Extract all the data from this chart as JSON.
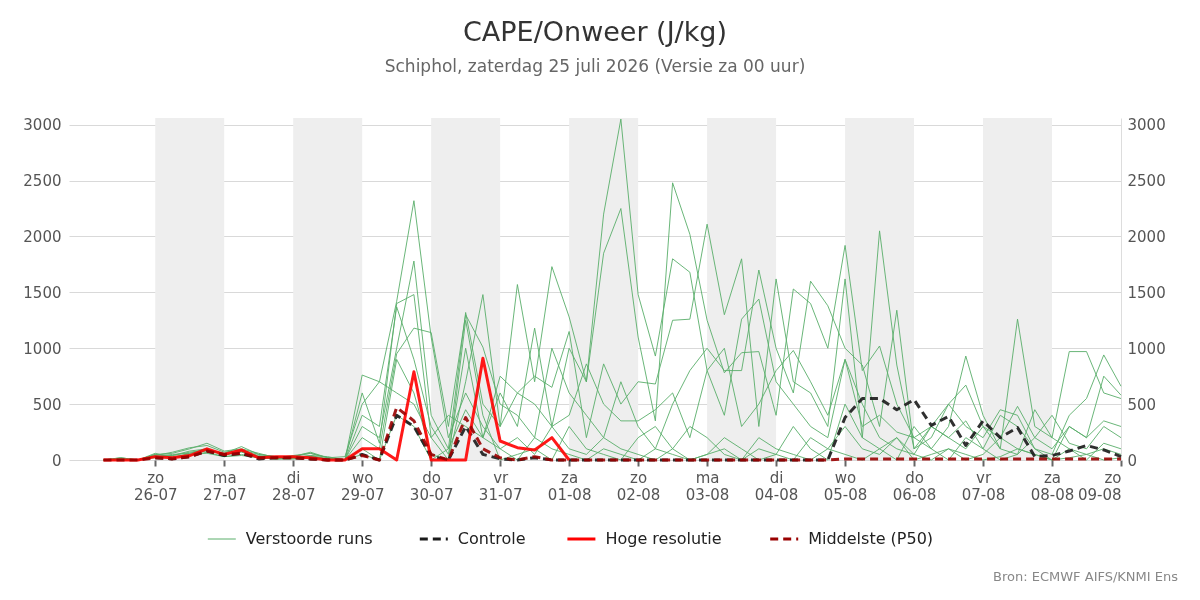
{
  "chart_data": {
    "type": "line",
    "title": "CAPE/Onweer (J/kg)",
    "subtitle": "Schiphol, zaterdag 25 juli 2026 (Versie za 00 uur)",
    "annotations": [
      "Bron: ECMWF AIFS/KNMI Ens"
    ],
    "x": [
      "2026-07-25T06:00",
      "2026-07-25T12:00",
      "2026-07-25T18:00",
      "2026-07-26T00:00",
      "2026-07-26T06:00",
      "2026-07-26T12:00",
      "2026-07-26T18:00",
      "2026-07-27T00:00",
      "2026-07-27T06:00",
      "2026-07-27T12:00",
      "2026-07-27T18:00",
      "2026-07-28T00:00",
      "2026-07-28T06:00",
      "2026-07-28T12:00",
      "2026-07-28T18:00",
      "2026-07-29T00:00",
      "2026-07-29T06:00",
      "2026-07-29T12:00",
      "2026-07-29T18:00",
      "2026-07-30T00:00",
      "2026-07-30T06:00",
      "2026-07-30T12:00",
      "2026-07-30T18:00",
      "2026-07-31T00:00",
      "2026-07-31T06:00",
      "2026-07-31T12:00",
      "2026-07-31T18:00",
      "2026-08-01T00:00",
      "2026-08-01T06:00",
      "2026-08-01T12:00",
      "2026-08-01T18:00",
      "2026-08-02T00:00",
      "2026-08-02T06:00",
      "2026-08-02T12:00",
      "2026-08-02T18:00",
      "2026-08-03T00:00",
      "2026-08-03T06:00",
      "2026-08-03T12:00",
      "2026-08-03T18:00",
      "2026-08-04T00:00",
      "2026-08-04T06:00",
      "2026-08-04T12:00",
      "2026-08-04T18:00",
      "2026-08-05T00:00",
      "2026-08-05T06:00",
      "2026-08-05T12:00",
      "2026-08-05T18:00",
      "2026-08-06T00:00",
      "2026-08-06T06:00",
      "2026-08-06T12:00",
      "2026-08-06T18:00",
      "2026-08-07T00:00",
      "2026-08-07T06:00",
      "2026-08-07T12:00",
      "2026-08-07T18:00",
      "2026-08-08T00:00",
      "2026-08-08T06:00",
      "2026-08-08T12:00",
      "2026-08-08T18:00",
      "2026-08-09T00:00"
    ],
    "xlim": [
      "2026-07-24T18:00",
      "2026-08-09T00:00"
    ],
    "xticks": [
      {
        "value": "2026-07-26",
        "label": "zo\n26-07"
      },
      {
        "value": "2026-07-27",
        "label": "ma\n27-07"
      },
      {
        "value": "2026-07-28",
        "label": "di\n28-07"
      },
      {
        "value": "2026-07-29",
        "label": "wo\n29-07"
      },
      {
        "value": "2026-07-30",
        "label": "do\n30-07"
      },
      {
        "value": "2026-07-31",
        "label": "vr\n31-07"
      },
      {
        "value": "2026-08-01",
        "label": "za\n01-08"
      },
      {
        "value": "2026-08-02",
        "label": "zo\n02-08"
      },
      {
        "value": "2026-08-03",
        "label": "ma\n03-08"
      },
      {
        "value": "2026-08-04",
        "label": "di\n04-08"
      },
      {
        "value": "2026-08-05",
        "label": "wo\n05-08"
      },
      {
        "value": "2026-08-06",
        "label": "do\n06-08"
      },
      {
        "value": "2026-08-07",
        "label": "vr\n07-08"
      },
      {
        "value": "2026-08-08",
        "label": "za\n08-08"
      },
      {
        "value": "2026-08-09",
        "label": "zo\n09-08"
      }
    ],
    "ylim": [
      0,
      3060
    ],
    "yticks": [
      0,
      500,
      1000,
      1500,
      2000,
      2500,
      3000
    ],
    "y2lim": [
      0,
      3060
    ],
    "y2ticks": [
      0,
      500,
      1000,
      1500,
      2000,
      2500,
      3000
    ],
    "grid": "y",
    "legend": "bottom",
    "bands": [
      {
        "axis": "x",
        "from": "2026-07-26",
        "to": "2026-07-27",
        "color": "#eeeeee"
      },
      {
        "axis": "x",
        "from": "2026-07-28",
        "to": "2026-07-29",
        "color": "#eeeeee"
      },
      {
        "axis": "x",
        "from": "2026-07-30",
        "to": "2026-07-31",
        "color": "#eeeeee"
      },
      {
        "axis": "x",
        "from": "2026-08-01",
        "to": "2026-08-02",
        "color": "#eeeeee"
      },
      {
        "axis": "x",
        "from": "2026-08-03",
        "to": "2026-08-04",
        "color": "#eeeeee"
      },
      {
        "axis": "x",
        "from": "2026-08-05",
        "to": "2026-08-06",
        "color": "#eeeeee"
      },
      {
        "axis": "x",
        "from": "2026-08-07",
        "to": "2026-08-08",
        "color": "#eeeeee"
      }
    ],
    "series": [
      {
        "name": "Verstoorde runs",
        "color": "#5aae6a",
        "line_style": "solid",
        "values": [
          0,
          10,
          0,
          50,
          60,
          100,
          150,
          80,
          100,
          60,
          20,
          40,
          60,
          20,
          30,
          500,
          700,
          1420,
          2320,
          1100,
          200,
          600,
          300,
          100,
          200,
          50,
          300,
          100,
          50,
          200,
          100,
          50,
          0,
          100,
          300,
          200,
          50,
          0,
          100,
          50,
          0,
          200,
          100,
          50,
          0,
          100,
          200,
          50,
          0,
          100,
          50,
          0,
          30,
          100,
          50,
          0,
          20,
          50,
          100,
          50
        ]
      },
      {
        "color": "#5aae6a",
        "line_style": "solid",
        "values": [
          0,
          20,
          0,
          30,
          40,
          70,
          90,
          60,
          120,
          50,
          30,
          20,
          40,
          30,
          0,
          400,
          300,
          1370,
          900,
          300,
          50,
          1000,
          200,
          600,
          300,
          1180,
          300,
          1000,
          700,
          2200,
          3050,
          1480,
          930,
          1800,
          1680,
          800,
          400,
          1260,
          1440,
          700,
          500,
          300,
          200,
          900,
          500,
          200,
          100,
          50,
          300,
          200,
          100,
          300,
          100,
          50,
          200,
          400,
          150,
          100,
          300,
          200
        ]
      },
      {
        "color": "#5aae6a",
        "line_style": "solid",
        "values": [
          0,
          0,
          0,
          60,
          20,
          60,
          100,
          40,
          80,
          30,
          10,
          20,
          30,
          10,
          0,
          300,
          200,
          1000,
          1780,
          400,
          100,
          1320,
          500,
          300,
          1570,
          700,
          1730,
          1280,
          700,
          1850,
          2250,
          1100,
          350,
          2480,
          2020,
          1250,
          780,
          960,
          970,
          400,
          1530,
          1400,
          1000,
          1920,
          800,
          1020,
          500,
          200,
          100,
          300,
          930,
          400,
          100,
          1260,
          300,
          200,
          970,
          970,
          600,
          550
        ]
      },
      {
        "color": "#5aae6a",
        "line_style": "solid",
        "values": [
          0,
          10,
          0,
          40,
          70,
          110,
          130,
          70,
          90,
          50,
          30,
          30,
          70,
          20,
          0,
          600,
          150,
          1400,
          1480,
          200,
          0,
          700,
          1480,
          300,
          600,
          750,
          650,
          1150,
          200,
          860,
          500,
          700,
          680,
          1250,
          1260,
          2110,
          1300,
          1800,
          300,
          1620,
          700,
          600,
          300,
          1620,
          200,
          2050,
          850,
          100,
          200,
          500,
          300,
          200,
          450,
          400,
          100,
          0,
          300,
          200,
          750,
          580
        ]
      },
      {
        "color": "#5aae6a",
        "line_style": "solid",
        "values": [
          null,
          null,
          0,
          20,
          30,
          50,
          60,
          30,
          50,
          20,
          10,
          10,
          20,
          10,
          0,
          200,
          100,
          950,
          1180,
          1140,
          300,
          1300,
          1010,
          500,
          400,
          200,
          1000,
          600,
          400,
          200,
          700,
          300,
          100,
          500,
          800,
          1000,
          800,
          800,
          1700,
          1000,
          600,
          1600,
          1380,
          1000,
          850,
          300,
          1340,
          100,
          300,
          200,
          350,
          100,
          400,
          300,
          100,
          50,
          400,
          550,
          940,
          660
        ]
      },
      {
        "color": "#5aae6a",
        "line_style": "solid",
        "values": [
          0,
          20,
          0,
          50,
          40,
          80,
          100,
          50,
          80,
          40,
          20,
          30,
          60,
          20,
          0,
          760,
          700,
          600,
          500,
          200,
          400,
          300,
          200,
          750,
          600,
          500,
          300,
          400,
          860,
          500,
          350,
          350,
          450,
          600,
          200,
          800,
          1000,
          300,
          500,
          800,
          980,
          700,
          400,
          900,
          300,
          400,
          250,
          200,
          300,
          500,
          670,
          300,
          200,
          480,
          200,
          100,
          300,
          200,
          350,
          300
        ]
      },
      {
        "color": "#5aae6a",
        "line_style": "solid",
        "values": [
          0,
          10,
          0,
          30,
          50,
          60,
          80,
          50,
          70,
          30,
          10,
          20,
          40,
          10,
          0,
          100,
          0,
          400,
          300,
          0,
          100,
          450,
          200,
          100,
          0,
          200,
          100,
          50,
          0,
          100,
          50,
          0,
          100,
          50,
          0,
          50,
          100,
          0,
          200,
          100,
          50,
          0,
          100,
          300,
          100,
          50,
          200,
          0,
          50,
          100,
          0,
          50,
          200,
          100,
          50,
          0,
          100,
          50,
          0,
          20
        ]
      },
      {
        "color": "#5aae6a",
        "line_style": "solid",
        "values": [
          0,
          0,
          0,
          40,
          20,
          40,
          70,
          30,
          40,
          20,
          10,
          10,
          30,
          10,
          0,
          50,
          0,
          900,
          600,
          50,
          0,
          1250,
          400,
          0,
          50,
          100,
          0,
          300,
          100,
          50,
          0,
          200,
          300,
          100,
          0,
          50,
          200,
          100,
          0,
          50,
          300,
          100,
          0,
          500,
          200,
          100,
          0,
          300,
          100,
          0,
          200,
          100,
          0,
          50,
          450,
          200,
          100,
          0,
          150,
          100
        ]
      },
      {
        "name": "Controle",
        "color": "#1a1a1a",
        "line_style": "dashed",
        "values": [
          null,
          null,
          null,
          20,
          10,
          30,
          80,
          40,
          60,
          10,
          20,
          20,
          10,
          0,
          0,
          50,
          0,
          400,
          300,
          30,
          0,
          300,
          50,
          10,
          0,
          20,
          0,
          0,
          0,
          0,
          0,
          0,
          0,
          0,
          0,
          0,
          0,
          0,
          0,
          0,
          0,
          0,
          0,
          380,
          550,
          550,
          450,
          540,
          310,
          390,
          130,
          350,
          200,
          290,
          30,
          40,
          80,
          130,
          90,
          30
        ]
      },
      {
        "name": "Hoge resolutie",
        "color": "#ff0000",
        "line_style": "solid",
        "values": [
          0,
          0,
          0,
          30,
          20,
          40,
          100,
          50,
          90,
          20,
          30,
          30,
          20,
          0,
          0,
          100,
          100,
          0,
          790,
          0,
          0,
          0,
          910,
          170,
          110,
          90,
          200,
          0,
          null,
          null,
          null,
          null,
          null,
          null,
          null,
          null,
          null,
          null,
          null,
          null,
          null,
          null,
          null,
          null,
          null,
          null,
          null,
          null,
          null,
          null,
          null,
          null,
          null,
          null,
          null,
          null,
          null,
          null,
          null,
          null
        ]
      },
      {
        "name": "Middelste (P50)",
        "color": "#990000",
        "line_style": "dashed",
        "values": [
          0,
          0,
          0,
          20,
          10,
          30,
          80,
          50,
          60,
          20,
          20,
          20,
          10,
          0,
          0,
          40,
          0,
          470,
          350,
          50,
          0,
          380,
          100,
          20,
          0,
          30,
          0,
          0,
          0,
          0,
          0,
          0,
          0,
          0,
          0,
          0,
          0,
          0,
          0,
          0,
          0,
          0,
          0,
          10,
          10,
          10,
          10,
          10,
          10,
          10,
          10,
          10,
          10,
          10,
          10,
          10,
          10,
          10,
          10,
          10
        ]
      }
    ]
  }
}
